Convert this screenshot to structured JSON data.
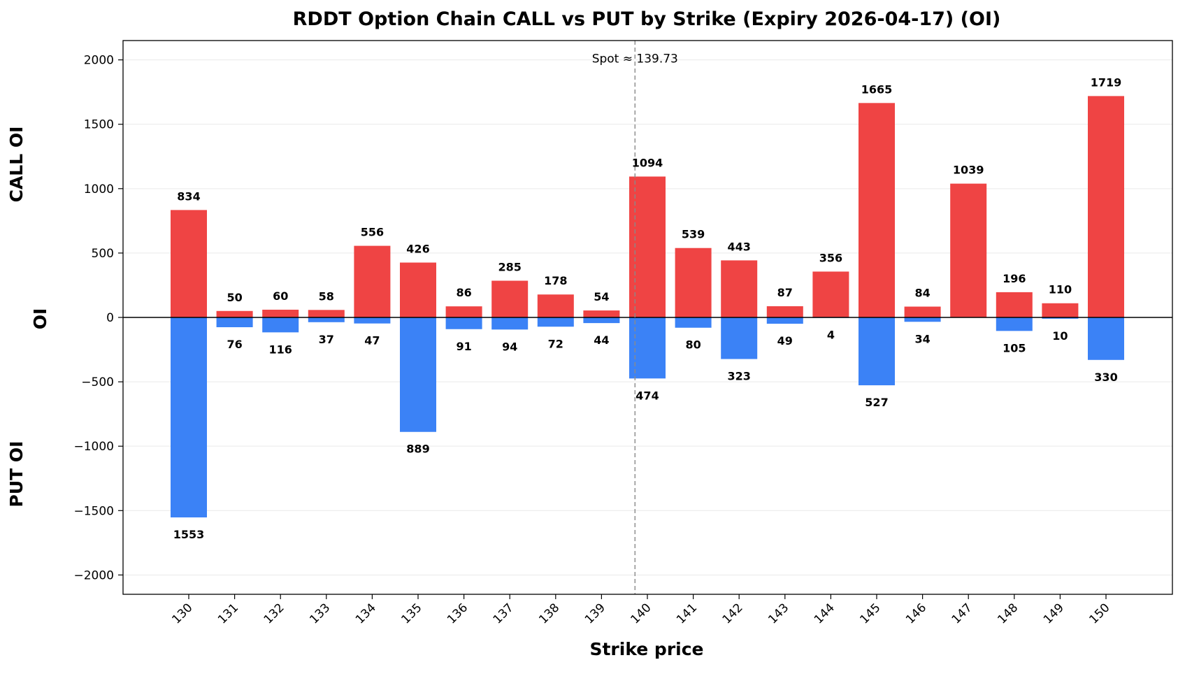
{
  "chart_data": {
    "type": "bar",
    "title": "RDDT Option Chain CALL vs PUT by Strike (Expiry 2026-04-17) (OI)",
    "xlabel": "Strike price",
    "ylabel": "OI",
    "call_axis_label": "CALL OI",
    "put_axis_label": "PUT OI",
    "categories": [
      "130",
      "131",
      "132",
      "133",
      "134",
      "135",
      "136",
      "137",
      "138",
      "139",
      "140",
      "141",
      "142",
      "143",
      "144",
      "145",
      "146",
      "147",
      "148",
      "149",
      "150"
    ],
    "series": [
      {
        "name": "CALL OI",
        "color": "#ef4444",
        "values": [
          834,
          50,
          60,
          58,
          556,
          426,
          86,
          285,
          178,
          54,
          1094,
          539,
          443,
          87,
          356,
          1665,
          84,
          1039,
          196,
          110,
          1719
        ]
      },
      {
        "name": "PUT OI",
        "color": "#3b82f6",
        "values": [
          1553,
          76,
          116,
          37,
          47,
          889,
          91,
          94,
          72,
          44,
          474,
          80,
          323,
          49,
          4,
          527,
          34,
          0,
          105,
          10,
          330
        ]
      }
    ],
    "put_labels": [
      "1553",
      "76",
      "116",
      "37",
      "47",
      "889",
      "91",
      "94",
      "72",
      "44",
      "474",
      "80",
      "323",
      "49",
      "4",
      "527",
      "34",
      "",
      "105",
      "10",
      "330"
    ],
    "ylim": [
      -2150,
      2150
    ],
    "yticks": [
      2000,
      1500,
      1000,
      500,
      0,
      -500,
      -1000,
      -1500,
      -2000
    ],
    "ytick_labels": [
      "2000",
      "1500",
      "1000",
      "500",
      "0",
      "−500",
      "−1000",
      "−1500",
      "−2000"
    ],
    "spot": 139.73,
    "spot_label": "Spot ≈ 139.73",
    "grid": true
  }
}
